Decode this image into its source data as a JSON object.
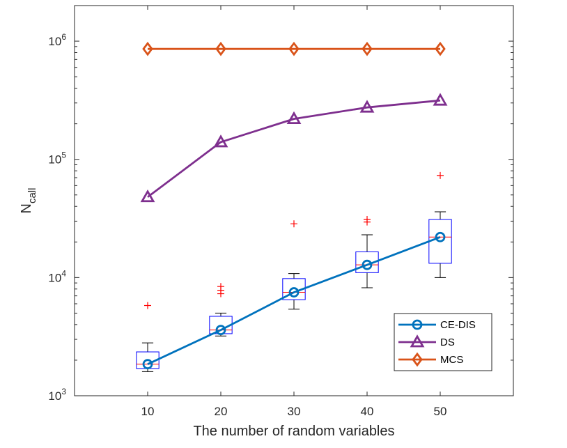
{
  "chart_data": {
    "type": "line",
    "title": "",
    "xlabel": "The number of random variables",
    "ylabel": "N",
    "ylabel_subscript": "call",
    "yscale": "log",
    "xlim": [
      0,
      60
    ],
    "ylim": [
      1000,
      2000000
    ],
    "x_ticks": [
      10,
      20,
      30,
      40,
      50
    ],
    "y_ticks": [
      {
        "value": 1000,
        "base": "10",
        "exp": "3"
      },
      {
        "value": 10000,
        "base": "10",
        "exp": "4"
      },
      {
        "value": 100000,
        "base": "10",
        "exp": "5"
      },
      {
        "value": 1000000,
        "base": "10",
        "exp": "6"
      }
    ],
    "grid": false,
    "legend_position": "bottom-right",
    "series": [
      {
        "name": "CE-DIS",
        "color": "#0072BD",
        "marker": "circle",
        "x": [
          10,
          20,
          30,
          40,
          50
        ],
        "y": [
          1850,
          3600,
          7500,
          12800,
          22000
        ]
      },
      {
        "name": "DS",
        "color": "#7E2F8E",
        "marker": "triangle",
        "x": [
          10,
          20,
          30,
          40,
          50
        ],
        "y": [
          48000,
          140000,
          220000,
          275000,
          315000
        ]
      },
      {
        "name": "MCS",
        "color": "#D95319",
        "marker": "diamond",
        "x": [
          10,
          20,
          30,
          40,
          50
        ],
        "y": [
          860000,
          860000,
          860000,
          860000,
          860000
        ]
      }
    ],
    "boxplots": {
      "box_color": "#0000FF",
      "median_color": "#FF0000",
      "whisker_color": "#000000",
      "outlier_color": "#FF0000",
      "boxes": [
        {
          "x": 10,
          "whisker_low": 1600,
          "q1": 1700,
          "median": 1850,
          "q3": 2350,
          "whisker_high": 2800,
          "outliers": [
            5800
          ]
        },
        {
          "x": 20,
          "whisker_low": 3200,
          "q1": 3350,
          "median": 3600,
          "q3": 4700,
          "whisker_high": 5000,
          "outliers": [
            7300,
            7800,
            8400
          ]
        },
        {
          "x": 30,
          "whisker_low": 5400,
          "q1": 6500,
          "median": 7500,
          "q3": 9800,
          "whisker_high": 10800,
          "outliers": [
            28500
          ]
        },
        {
          "x": 40,
          "whisker_low": 8200,
          "q1": 11000,
          "median": 12800,
          "q3": 16500,
          "whisker_high": 23000,
          "outliers": [
            29500,
            31000
          ]
        },
        {
          "x": 50,
          "whisker_low": 10000,
          "q1": 13200,
          "median": 22000,
          "q3": 31000,
          "whisker_high": 36000,
          "outliers": [
            73000
          ]
        }
      ]
    }
  }
}
